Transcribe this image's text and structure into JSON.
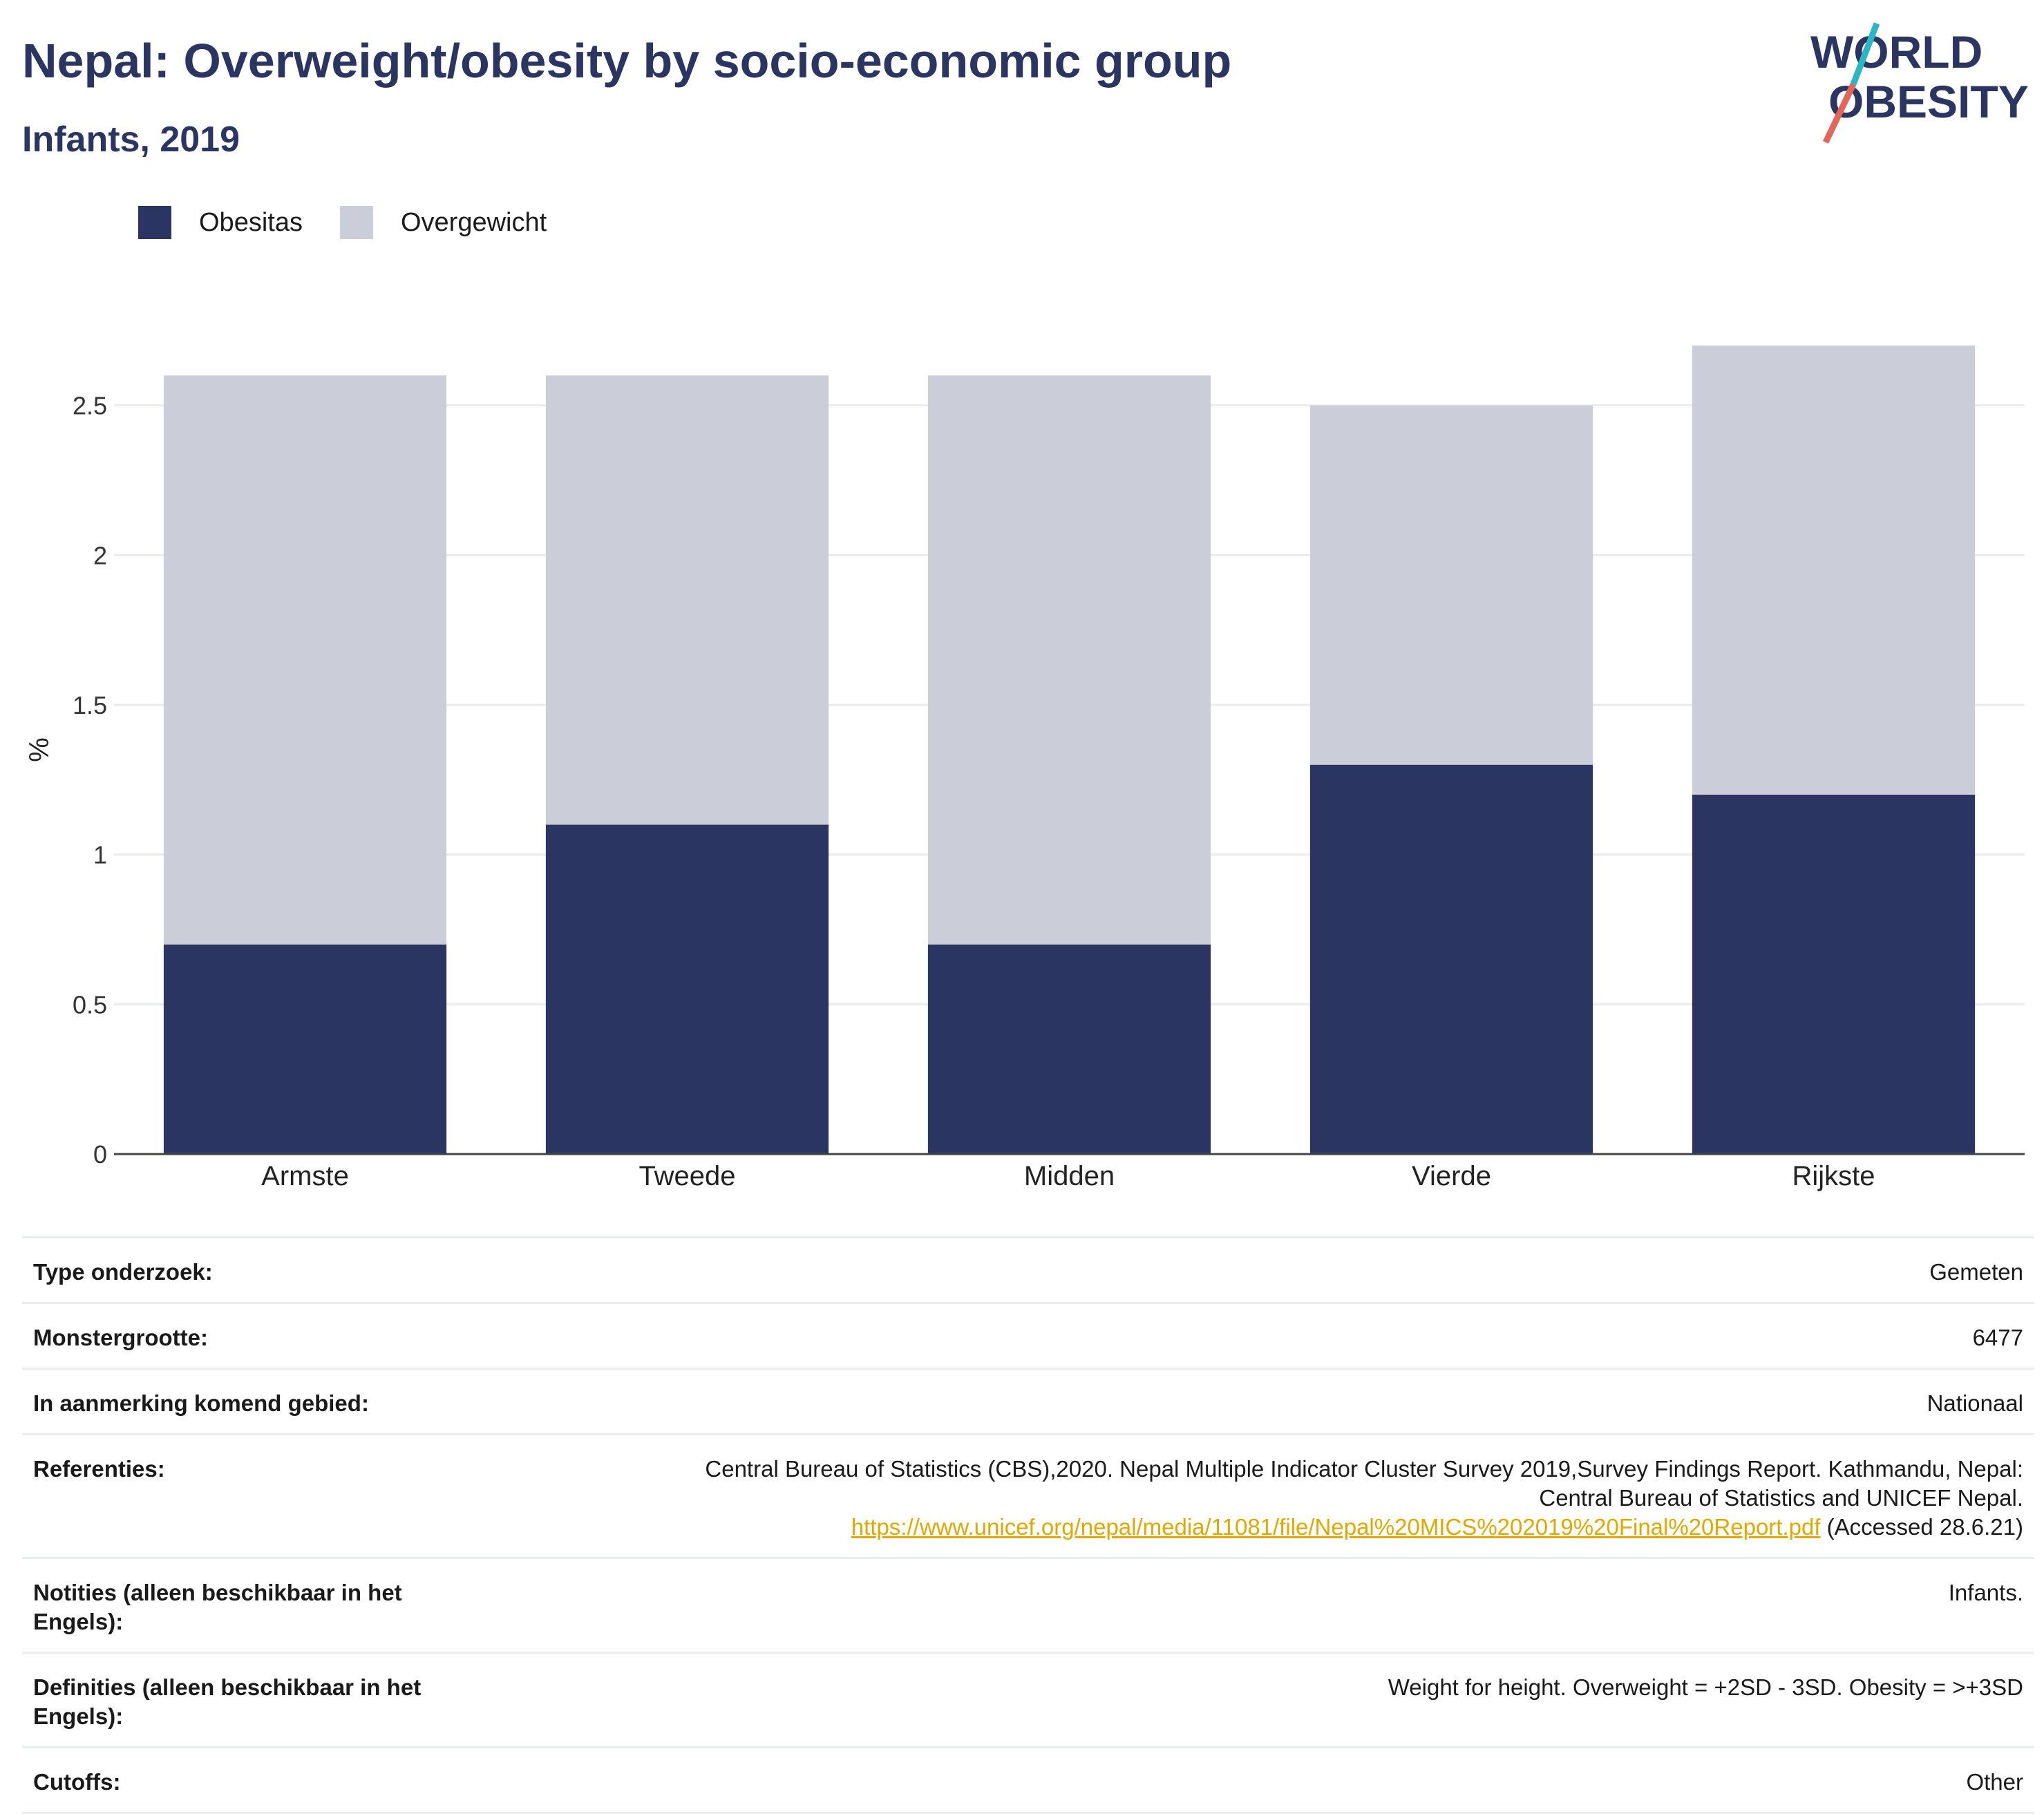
{
  "header": {
    "title": "Nepal: Overweight/obesity by socio-economic group",
    "subtitle": "Infants, 2019"
  },
  "logo": {
    "line1": "WORLD",
    "line2": "OBESITY"
  },
  "colors": {
    "obesity": "#2a3561",
    "overweight": "#cbcdd8",
    "accent_teal": "#2bb6c5",
    "accent_red": "#e2675a",
    "link": "#e0a800"
  },
  "legend": [
    {
      "label": "Obesitas",
      "color": "#2a3561"
    },
    {
      "label": "Overgewicht",
      "color": "#cbcdd8"
    }
  ],
  "chart_data": {
    "type": "bar",
    "stacked": true,
    "categories": [
      "Armste",
      "Tweede",
      "Midden",
      "Vierde",
      "Rijkste"
    ],
    "series": [
      {
        "name": "Obesitas",
        "values": [
          0.7,
          1.1,
          0.7,
          1.3,
          1.2
        ]
      },
      {
        "name": "Overgewicht",
        "values": [
          1.9,
          1.5,
          1.9,
          1.2,
          1.5
        ]
      }
    ],
    "ylabel": "%",
    "ylim": [
      0,
      2.7
    ],
    "yticks": [
      0,
      0.5,
      1,
      1.5,
      2,
      2.5
    ],
    "ytick_labels": [
      "0",
      "0.5",
      "1",
      "1.5",
      "2",
      "2.5"
    ],
    "grid": true,
    "legend_position": "top-left"
  },
  "info": {
    "rows": [
      {
        "label": "Type onderzoek:",
        "value": "Gemeten"
      },
      {
        "label": "Monstergrootte:",
        "value": "6477"
      },
      {
        "label": "In aanmerking komend gebied:",
        "value": "Nationaal"
      }
    ],
    "references": {
      "label": "Referenties:",
      "line1": "Central Bureau of Statistics (CBS),2020. Nepal Multiple Indicator Cluster Survey 2019,Survey Findings Report. Kathmandu, Nepal:",
      "line2": "Central Bureau of Statistics and UNICEF Nepal.",
      "link": "https://www.unicef.org/nepal/media/11081/file/Nepal%20MICS%202019%20Final%20Report.pdf",
      "accessed": "(Accessed 28.6.21)"
    },
    "notes": {
      "label": "Notities (alleen beschikbaar in het Engels):",
      "value": "Infants."
    },
    "definitions": {
      "label": "Definities (alleen beschikbaar in het Engels):",
      "value": "Weight for height. Overweight = +2SD - 3SD. Obesity = >+3SD"
    },
    "cutoffs": {
      "label": "Cutoffs:",
      "value": "Other"
    }
  }
}
